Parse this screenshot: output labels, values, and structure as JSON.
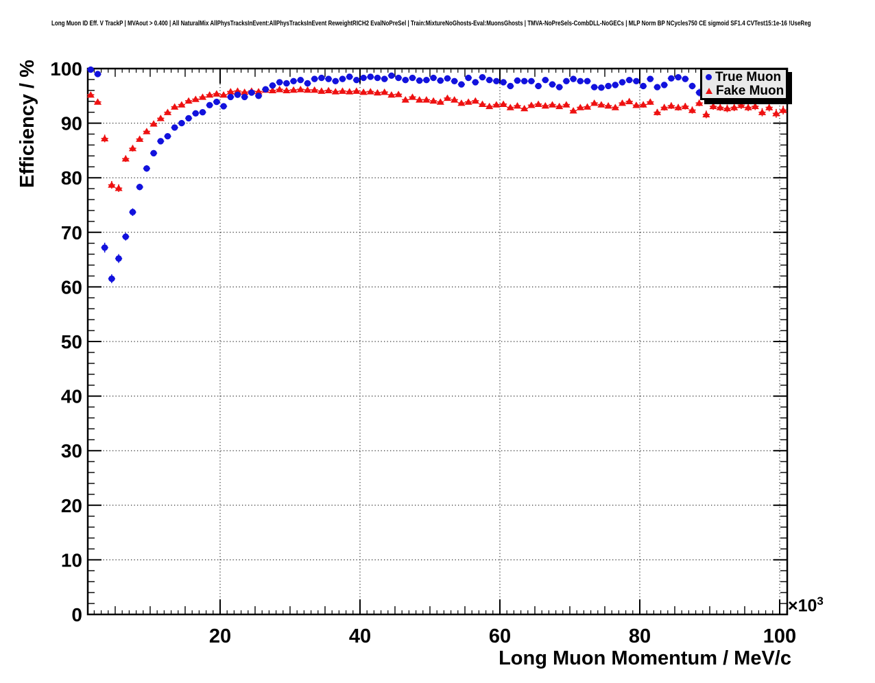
{
  "header": {
    "title": "Long Muon ID Eff. V TrackP | MVAout > 0.400 | All NaturalMix AllPhysTracksInEvent:AllPhysTracksInEvent ReweightRICH2 EvalNoPreSel | Train:MixtureNoGhosts-Eval:MuonsGhosts | TMVA-NoPreSels-CombDLL-NoGECs | MLP Norm BP NCycles750 CE sigmoid SF1.4 CVTest15:1e-16 !UseReg"
  },
  "chart_data": {
    "type": "scatter",
    "title": "",
    "xlabel": "Long Muon Momentum / MeV/c",
    "ylabel": "Efficiency / %",
    "grid": {
      "style": "dotted",
      "color": "#000000"
    },
    "x_axis": {
      "min": 1.08,
      "max": 101.08,
      "unit_scale_base": "×10",
      "unit_scale_exponent": "3",
      "major_ticks": [
        20,
        40,
        60,
        80,
        100
      ],
      "tick_labels": [
        "20",
        "40",
        "60",
        "80",
        "100"
      ],
      "secondary_step": 5,
      "sub_step": 1
    },
    "y_axis": {
      "min": 0,
      "max": 100,
      "major_ticks": [
        0,
        10,
        20,
        30,
        40,
        50,
        60,
        70,
        80,
        90,
        100
      ],
      "tick_labels": [
        "0",
        "10",
        "20",
        "30",
        "40",
        "50",
        "60",
        "70",
        "80",
        "90",
        "100"
      ],
      "minor_step": 2
    },
    "legend": {
      "position": "top-right",
      "entries": [
        {
          "label": "True Muon",
          "marker": "circle",
          "color": "#1212dd"
        },
        {
          "label": "Fake Muon",
          "marker": "triangle",
          "color": "#ee1111"
        }
      ]
    },
    "bin_half_width": 0.5,
    "series": [
      {
        "name": "True Muon",
        "marker": "circle",
        "color": "#1212dd",
        "points": [
          [
            1.5,
            99.8,
            0.3
          ],
          [
            2.5,
            99.0,
            0.4
          ],
          [
            3.5,
            67.2,
            0.9
          ],
          [
            4.5,
            61.5,
            0.8
          ],
          [
            5.5,
            65.2,
            0.8
          ],
          [
            6.5,
            69.2,
            0.7
          ],
          [
            7.5,
            73.7,
            0.7
          ],
          [
            8.5,
            78.3,
            0.6
          ],
          [
            9.5,
            81.7,
            0.6
          ],
          [
            10.5,
            84.5,
            0.5
          ],
          [
            11.5,
            86.7,
            0.5
          ],
          [
            12.5,
            87.6,
            0.5
          ],
          [
            13.5,
            89.2,
            0.4
          ],
          [
            14.5,
            90.0,
            0.4
          ],
          [
            15.5,
            90.9,
            0.4
          ],
          [
            16.5,
            91.8,
            0.4
          ],
          [
            17.5,
            92.0,
            0.4
          ],
          [
            18.5,
            93.3,
            0.4
          ],
          [
            19.5,
            93.9,
            0.35
          ],
          [
            20.5,
            93.1,
            0.35
          ],
          [
            21.5,
            94.8,
            0.35
          ],
          [
            22.5,
            95.2,
            0.35
          ],
          [
            23.5,
            94.8,
            0.35
          ],
          [
            24.5,
            95.6,
            0.3
          ],
          [
            25.5,
            95.0,
            0.3
          ],
          [
            26.5,
            96.2,
            0.3
          ],
          [
            27.5,
            96.9,
            0.3
          ],
          [
            28.5,
            97.5,
            0.3
          ],
          [
            29.5,
            97.3,
            0.3
          ],
          [
            30.5,
            97.7,
            0.25
          ],
          [
            31.5,
            97.9,
            0.25
          ],
          [
            32.5,
            97.3,
            0.25
          ],
          [
            33.5,
            98.1,
            0.25
          ],
          [
            34.5,
            98.3,
            0.25
          ],
          [
            35.5,
            98.1,
            0.25
          ],
          [
            36.5,
            97.7,
            0.25
          ],
          [
            37.5,
            98.1,
            0.25
          ],
          [
            38.5,
            98.5,
            0.25
          ],
          [
            39.5,
            97.9,
            0.25
          ],
          [
            40.5,
            98.3,
            0.25
          ],
          [
            41.5,
            98.5,
            0.25
          ],
          [
            42.5,
            98.3,
            0.25
          ],
          [
            43.5,
            98.1,
            0.25
          ],
          [
            44.5,
            98.7,
            0.25
          ],
          [
            45.5,
            98.3,
            0.25
          ],
          [
            46.5,
            97.9,
            0.3
          ],
          [
            47.5,
            98.3,
            0.3
          ],
          [
            48.5,
            97.8,
            0.3
          ],
          [
            49.5,
            97.9,
            0.3
          ],
          [
            50.5,
            98.3,
            0.3
          ],
          [
            51.5,
            97.8,
            0.3
          ],
          [
            52.5,
            98.2,
            0.3
          ],
          [
            53.5,
            97.7,
            0.3
          ],
          [
            54.5,
            97.1,
            0.35
          ],
          [
            55.5,
            98.3,
            0.3
          ],
          [
            56.5,
            97.5,
            0.35
          ],
          [
            57.5,
            98.4,
            0.3
          ],
          [
            58.5,
            97.9,
            0.35
          ],
          [
            59.5,
            97.7,
            0.35
          ],
          [
            60.5,
            97.5,
            0.35
          ],
          [
            61.5,
            96.8,
            0.4
          ],
          [
            62.5,
            97.8,
            0.35
          ],
          [
            63.5,
            97.7,
            0.35
          ],
          [
            64.5,
            97.7,
            0.4
          ],
          [
            65.5,
            96.8,
            0.4
          ],
          [
            66.5,
            97.9,
            0.4
          ],
          [
            67.5,
            97.1,
            0.4
          ],
          [
            68.5,
            96.6,
            0.45
          ],
          [
            69.5,
            97.7,
            0.4
          ],
          [
            70.5,
            98.1,
            0.4
          ],
          [
            71.5,
            97.7,
            0.45
          ],
          [
            72.5,
            97.7,
            0.45
          ],
          [
            73.5,
            96.6,
            0.5
          ],
          [
            74.5,
            96.5,
            0.5
          ],
          [
            75.5,
            96.8,
            0.5
          ],
          [
            76.5,
            97.0,
            0.5
          ],
          [
            77.5,
            97.5,
            0.5
          ],
          [
            78.5,
            97.9,
            0.5
          ],
          [
            79.5,
            97.7,
            0.5
          ],
          [
            80.5,
            96.8,
            0.55
          ],
          [
            81.5,
            98.1,
            0.5
          ],
          [
            82.5,
            96.6,
            0.55
          ],
          [
            83.5,
            97.0,
            0.55
          ],
          [
            84.5,
            98.2,
            0.5
          ],
          [
            85.5,
            98.4,
            0.5
          ],
          [
            86.5,
            98.1,
            0.55
          ],
          [
            87.5,
            96.8,
            0.6
          ],
          [
            88.5,
            95.6,
            0.7
          ]
        ]
      },
      {
        "name": "Fake Muon",
        "marker": "triangle",
        "color": "#ee1111",
        "points": [
          [
            1.5,
            95.2,
            0.5
          ],
          [
            2.5,
            93.9,
            0.5
          ],
          [
            3.5,
            87.2,
            0.7
          ],
          [
            4.5,
            78.7,
            0.7
          ],
          [
            5.5,
            78.1,
            0.7
          ],
          [
            6.5,
            83.5,
            0.6
          ],
          [
            7.5,
            85.4,
            0.6
          ],
          [
            8.5,
            87.1,
            0.5
          ],
          [
            9.5,
            88.5,
            0.5
          ],
          [
            10.5,
            89.9,
            0.45
          ],
          [
            11.5,
            90.9,
            0.4
          ],
          [
            12.5,
            92.0,
            0.4
          ],
          [
            13.5,
            93.0,
            0.35
          ],
          [
            14.5,
            93.4,
            0.35
          ],
          [
            15.5,
            94.1,
            0.3
          ],
          [
            16.5,
            94.4,
            0.3
          ],
          [
            17.5,
            94.8,
            0.3
          ],
          [
            18.5,
            95.2,
            0.25
          ],
          [
            19.5,
            95.4,
            0.25
          ],
          [
            20.5,
            95.2,
            0.25
          ],
          [
            21.5,
            95.8,
            0.25
          ],
          [
            22.5,
            95.9,
            0.25
          ],
          [
            23.5,
            95.7,
            0.25
          ],
          [
            24.5,
            95.9,
            0.25
          ],
          [
            25.5,
            95.8,
            0.25
          ],
          [
            26.5,
            96.1,
            0.25
          ],
          [
            27.5,
            96.0,
            0.25
          ],
          [
            28.5,
            96.2,
            0.25
          ],
          [
            29.5,
            96.0,
            0.25
          ],
          [
            30.5,
            96.1,
            0.25
          ],
          [
            31.5,
            96.2,
            0.25
          ],
          [
            32.5,
            96.1,
            0.25
          ],
          [
            33.5,
            96.1,
            0.25
          ],
          [
            34.5,
            95.9,
            0.25
          ],
          [
            35.5,
            96.0,
            0.25
          ],
          [
            36.5,
            95.8,
            0.25
          ],
          [
            37.5,
            95.9,
            0.25
          ],
          [
            38.5,
            95.8,
            0.25
          ],
          [
            39.5,
            95.9,
            0.25
          ],
          [
            40.5,
            95.7,
            0.25
          ],
          [
            41.5,
            95.8,
            0.25
          ],
          [
            42.5,
            95.6,
            0.25
          ],
          [
            43.5,
            95.7,
            0.25
          ],
          [
            44.5,
            95.2,
            0.3
          ],
          [
            45.5,
            95.3,
            0.3
          ],
          [
            46.5,
            94.3,
            0.3
          ],
          [
            47.5,
            94.8,
            0.3
          ],
          [
            48.5,
            94.3,
            0.3
          ],
          [
            49.5,
            94.3,
            0.3
          ],
          [
            50.5,
            94.1,
            0.3
          ],
          [
            51.5,
            93.9,
            0.3
          ],
          [
            52.5,
            94.6,
            0.3
          ],
          [
            53.5,
            94.3,
            0.3
          ],
          [
            54.5,
            93.7,
            0.35
          ],
          [
            55.5,
            93.9,
            0.35
          ],
          [
            56.5,
            94.1,
            0.35
          ],
          [
            57.5,
            93.5,
            0.35
          ],
          [
            58.5,
            93.1,
            0.35
          ],
          [
            59.5,
            93.4,
            0.35
          ],
          [
            60.5,
            93.5,
            0.35
          ],
          [
            61.5,
            92.9,
            0.4
          ],
          [
            62.5,
            93.2,
            0.4
          ],
          [
            63.5,
            92.7,
            0.4
          ],
          [
            64.5,
            93.3,
            0.4
          ],
          [
            65.5,
            93.5,
            0.4
          ],
          [
            66.5,
            93.2,
            0.4
          ],
          [
            67.5,
            93.4,
            0.4
          ],
          [
            68.5,
            93.1,
            0.45
          ],
          [
            69.5,
            93.4,
            0.45
          ],
          [
            70.5,
            92.3,
            0.45
          ],
          [
            71.5,
            92.9,
            0.45
          ],
          [
            72.5,
            93.0,
            0.45
          ],
          [
            73.5,
            93.7,
            0.45
          ],
          [
            74.5,
            93.4,
            0.5
          ],
          [
            75.5,
            93.2,
            0.5
          ],
          [
            76.5,
            92.9,
            0.5
          ],
          [
            77.5,
            93.7,
            0.5
          ],
          [
            78.5,
            94.0,
            0.5
          ],
          [
            79.5,
            93.3,
            0.5
          ],
          [
            80.5,
            93.4,
            0.55
          ],
          [
            81.5,
            93.9,
            0.55
          ],
          [
            82.5,
            92.0,
            0.6
          ],
          [
            83.5,
            92.9,
            0.6
          ],
          [
            84.5,
            93.2,
            0.6
          ],
          [
            85.5,
            92.9,
            0.6
          ],
          [
            86.5,
            93.1,
            0.6
          ],
          [
            87.5,
            92.4,
            0.65
          ],
          [
            88.5,
            93.7,
            0.6
          ],
          [
            89.5,
            91.6,
            0.7
          ],
          [
            90.5,
            93.1,
            0.65
          ],
          [
            91.5,
            92.9,
            0.65
          ],
          [
            92.5,
            92.7,
            0.7
          ],
          [
            93.5,
            92.9,
            0.7
          ],
          [
            94.5,
            93.3,
            0.7
          ],
          [
            95.5,
            92.9,
            0.7
          ],
          [
            96.5,
            93.1,
            0.7
          ],
          [
            97.5,
            92.0,
            0.75
          ],
          [
            98.5,
            92.9,
            0.75
          ],
          [
            99.5,
            91.8,
            0.8
          ],
          [
            100.5,
            92.4,
            0.8
          ]
        ]
      }
    ]
  }
}
